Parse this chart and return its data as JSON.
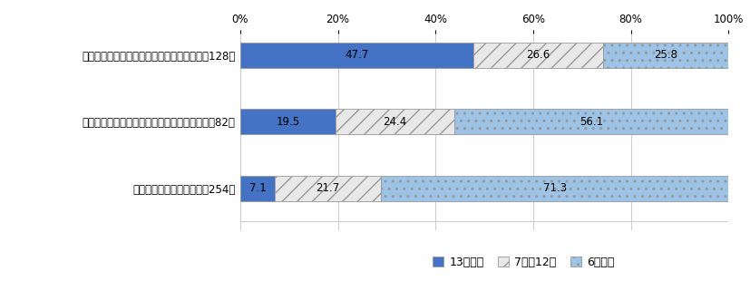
{
  "categories": [
    "健康上の問題と事件が関連していると思う（128）",
    "健康上の問題と事件が関連していないと思う（82）",
    "健康上の問題はなかった（254）"
  ],
  "segments": [
    {
      "label": "13点以上",
      "values": [
        47.7,
        19.5,
        7.1
      ],
      "color": "#4472C4",
      "hatch": ""
    },
    {
      "label": "7点～12点",
      "values": [
        26.6,
        24.4,
        21.7
      ],
      "color": "#E8E8E8",
      "hatch": "//"
    },
    {
      "label": "6点以下",
      "values": [
        25.8,
        56.1,
        71.3
      ],
      "color": "#9DC3E6",
      "hatch": ".."
    }
  ],
  "xlim": [
    0,
    100
  ],
  "xticks": [
    0,
    20,
    40,
    60,
    80,
    100
  ],
  "xticklabels": [
    "0%",
    "20%",
    "40%",
    "60%",
    "80%",
    "100%"
  ],
  "background_color": "#FFFFFF",
  "bar_height": 0.38,
  "fontsize_label": 8.5,
  "fontsize_tick": 8.5,
  "fontsize_value": 8.5,
  "fontsize_legend": 9,
  "grid_color": "#CCCCCC",
  "edge_color": "#999999"
}
